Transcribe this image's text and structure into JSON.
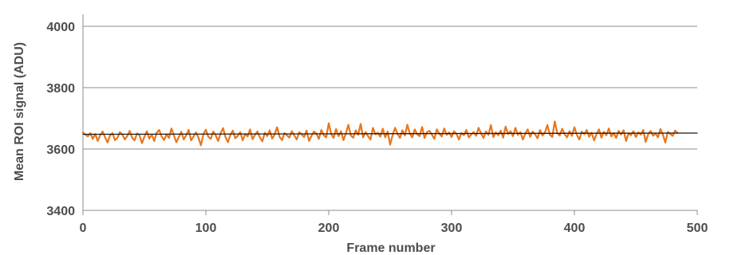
{
  "chart_data": {
    "type": "line",
    "xlabel": "Frame number",
    "ylabel": "Mean ROI signal (ADU)",
    "xlim": [
      0,
      500
    ],
    "ylim": [
      3400,
      4000
    ],
    "x_ticks": [
      "0",
      "100",
      "200",
      "300",
      "400",
      "500"
    ],
    "y_ticks": [
      "4000",
      "3800",
      "3600",
      "3400"
    ],
    "grid": "horizontal",
    "legend": "none",
    "series": [
      {
        "color": "#e8761c",
        "x_start": 0,
        "x_step": 2,
        "values": [
          3654,
          3647,
          3641,
          3652,
          3633,
          3649,
          3626,
          3645,
          3657,
          3638,
          3621,
          3644,
          3652,
          3629,
          3636,
          3655,
          3648,
          3631,
          3642,
          3659,
          3637,
          3628,
          3651,
          3645,
          3619,
          3640,
          3658,
          3634,
          3647,
          3626,
          3653,
          3662,
          3641,
          3629,
          3648,
          3636,
          3667,
          3644,
          3622,
          3639,
          3656,
          3631,
          3645,
          3662,
          3628,
          3641,
          3654,
          3637,
          3612,
          3648,
          3663,
          3640,
          3633,
          3657,
          3645,
          3626,
          3651,
          3668,
          3639,
          3622,
          3647,
          3660,
          3635,
          3643,
          3655,
          3628,
          3649,
          3641,
          3664,
          3632,
          3646,
          3657,
          3638,
          3625,
          3653,
          3642,
          3661,
          3634,
          3648,
          3671,
          3640,
          3629,
          3652,
          3645,
          3637,
          3658,
          3644,
          3631,
          3655,
          3648,
          3639,
          3660,
          3626,
          3643,
          3657,
          3650,
          3633,
          3662,
          3645,
          3638,
          3684,
          3649,
          3636,
          3665,
          3642,
          3658,
          3629,
          3651,
          3679,
          3644,
          3637,
          3661,
          3646,
          3682,
          3638,
          3655,
          3642,
          3631,
          3669,
          3648,
          3653,
          3640,
          3666,
          3638,
          3657,
          3614,
          3645,
          3669,
          3650,
          3636,
          3661,
          3644,
          3679,
          3651,
          3638,
          3664,
          3648,
          3642,
          3672,
          3636,
          3655,
          3659,
          3647,
          3633,
          3664,
          3650,
          3641,
          3667,
          3646,
          3654,
          3639,
          3658,
          3649,
          3631,
          3652,
          3645,
          3662,
          3638,
          3647,
          3655,
          3643,
          3669,
          3651,
          3636,
          3657,
          3646,
          3678,
          3639,
          3654,
          3645,
          3660,
          3637,
          3673,
          3649,
          3658,
          3642,
          3669,
          3646,
          3655,
          3631,
          3650,
          3664,
          3640,
          3657,
          3648,
          3635,
          3662,
          3644,
          3654,
          3678,
          3647,
          3639,
          3690,
          3652,
          3644,
          3666,
          3649,
          3638,
          3658,
          3643,
          3671,
          3646,
          3631,
          3657,
          3648,
          3662,
          3640,
          3653,
          3628,
          3649,
          3664,
          3637,
          3656,
          3645,
          3667,
          3641,
          3652,
          3636,
          3659,
          3647,
          3661,
          3626,
          3651,
          3645,
          3658,
          3639,
          3654,
          3647,
          3662,
          3623,
          3648,
          3659,
          3643,
          3651,
          3638,
          3665,
          3647,
          3621,
          3656,
          3649,
          3643,
          3660,
          3652
        ]
      },
      {
        "color": "#1a1a1a",
        "x": [
          0,
          500
        ],
        "values": [
          3648,
          3652
        ]
      }
    ]
  }
}
